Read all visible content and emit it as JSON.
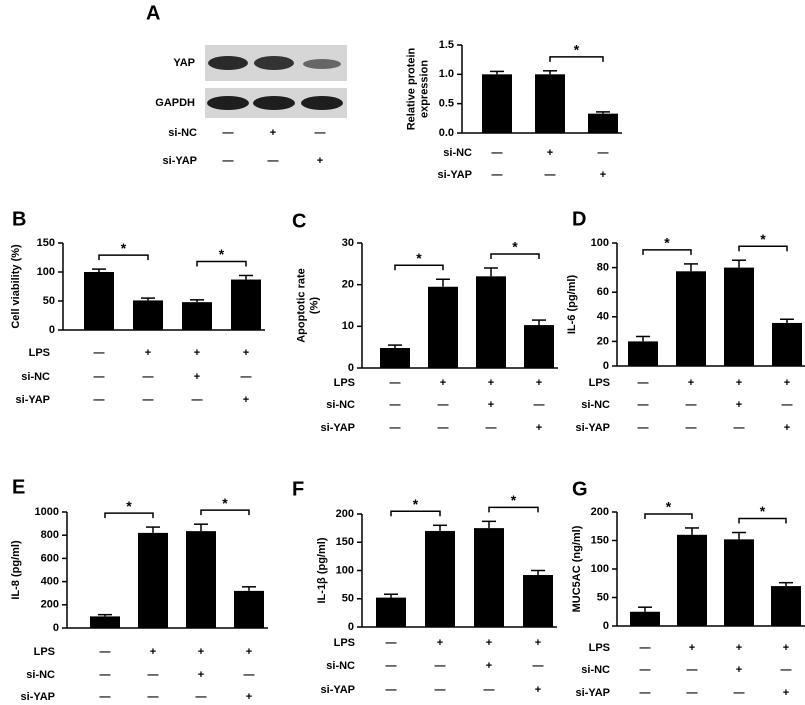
{
  "chart_data": [
    {
      "type": "bar",
      "panel": "A",
      "ylabel": [
        "Relative protein",
        "expression"
      ],
      "values": [
        1.0,
        1.0,
        0.33
      ],
      "errors": [
        0.05,
        0.06,
        0.03
      ],
      "color": "#000000",
      "ylim": [
        0,
        1.5
      ],
      "yticks": [
        {
          "value": 0,
          "label": "0.0"
        },
        {
          "value": 0.5,
          "label": "0.5"
        },
        {
          "value": 1,
          "label": "1.0"
        },
        {
          "value": 1.5,
          "label": "1.5"
        }
      ],
      "conditions": [
        {
          "label": "si-NC",
          "values": [
            "—",
            "+",
            "—"
          ]
        },
        {
          "label": "si-YAP",
          "values": [
            "—",
            "—",
            "+"
          ]
        }
      ],
      "comparisons": [
        {
          "label": "*"
        }
      ],
      "blot": {
        "bands": [
          "YAP",
          "GAPDH"
        ],
        "conditions": [
          {
            "label": "si-NC",
            "values": [
              "—",
              "+",
              "—"
            ]
          },
          {
            "label": "si-YAP",
            "values": [
              "—",
              "—",
              "+"
            ]
          }
        ]
      }
    },
    {
      "type": "bar",
      "panel": "B",
      "ylabel": [
        "Cell viability (%)"
      ],
      "values": [
        100,
        51,
        48,
        87
      ],
      "errors": [
        5,
        4,
        4,
        7
      ],
      "color": "#000000",
      "ylim": [
        0,
        150
      ],
      "yticks": [
        0,
        50,
        100,
        150
      ],
      "conditions": [
        {
          "label": "LPS",
          "values": [
            "—",
            "+",
            "+",
            "+"
          ]
        },
        {
          "label": "si-NC",
          "values": [
            "—",
            "—",
            "+",
            "—"
          ]
        },
        {
          "label": "si-YAP",
          "values": [
            "—",
            "—",
            "—",
            "+"
          ]
        }
      ],
      "comparisons": [
        {
          "label": "*"
        },
        {
          "label": "*"
        }
      ]
    },
    {
      "type": "bar",
      "panel": "C",
      "ylabel": [
        "Apoptotic rate",
        "(%)"
      ],
      "values": [
        4.8,
        19.5,
        22,
        10.3
      ],
      "errors": [
        0.7,
        1.8,
        2,
        1.2
      ],
      "color": "#000000",
      "ylim": [
        0,
        30
      ],
      "yticks": [
        0,
        10,
        20,
        30
      ],
      "conditions": [
        {
          "label": "LPS",
          "values": [
            "—",
            "+",
            "+",
            "+"
          ]
        },
        {
          "label": "si-NC",
          "values": [
            "—",
            "—",
            "+",
            "—"
          ]
        },
        {
          "label": "si-YAP",
          "values": [
            "—",
            "—",
            "—",
            "+"
          ]
        }
      ],
      "comparisons": [
        {
          "label": "*"
        },
        {
          "label": "*"
        }
      ]
    },
    {
      "type": "bar",
      "panel": "D",
      "ylabel": [
        "IL-6 (pg/ml)"
      ],
      "values": [
        20,
        77,
        80,
        35
      ],
      "errors": [
        4,
        6,
        6,
        3
      ],
      "color": "#000000",
      "ylim": [
        0,
        100
      ],
      "yticks": [
        0,
        20,
        40,
        60,
        80,
        100
      ],
      "conditions": [
        {
          "label": "LPS",
          "values": [
            "—",
            "+",
            "+",
            "+"
          ]
        },
        {
          "label": "si-NC",
          "values": [
            "—",
            "—",
            "+",
            "—"
          ]
        },
        {
          "label": "si-YAP",
          "values": [
            "—",
            "—",
            "—",
            "+"
          ]
        }
      ],
      "comparisons": [
        {
          "label": "*"
        },
        {
          "label": "*"
        }
      ]
    },
    {
      "type": "bar",
      "panel": "E",
      "ylabel": [
        "IL-8 (pg/ml)"
      ],
      "values": [
        100,
        820,
        835,
        320
      ],
      "errors": [
        15,
        50,
        60,
        35
      ],
      "color": "#000000",
      "ylim": [
        0,
        1000
      ],
      "yticks": [
        0,
        200,
        400,
        600,
        800,
        1000
      ],
      "conditions": [
        {
          "label": "LPS",
          "values": [
            "—",
            "+",
            "+",
            "+"
          ]
        },
        {
          "label": "si-NC",
          "values": [
            "—",
            "—",
            "+",
            "—"
          ]
        },
        {
          "label": "si-YAP",
          "values": [
            "—",
            "—",
            "—",
            "+"
          ]
        }
      ],
      "comparisons": [
        {
          "label": "*"
        },
        {
          "label": "*"
        }
      ]
    },
    {
      "type": "bar",
      "panel": "F",
      "ylabel": [
        "IL-1β (pg/ml)"
      ],
      "values": [
        52,
        170,
        175,
        92
      ],
      "errors": [
        6,
        10,
        12,
        8
      ],
      "color": "#000000",
      "ylim": [
        0,
        200
      ],
      "yticks": [
        0,
        50,
        100,
        150,
        200
      ],
      "conditions": [
        {
          "label": "LPS",
          "values": [
            "—",
            "+",
            "+",
            "+"
          ]
        },
        {
          "label": "si-NC",
          "values": [
            "—",
            "—",
            "+",
            "—"
          ]
        },
        {
          "label": "si-YAP",
          "values": [
            "—",
            "—",
            "—",
            "+"
          ]
        }
      ],
      "comparisons": [
        {
          "label": "*"
        },
        {
          "label": "*"
        }
      ]
    },
    {
      "type": "bar",
      "panel": "G",
      "ylabel": [
        "MUC5AC (ng/ml)"
      ],
      "values": [
        25,
        160,
        152,
        70
      ],
      "errors": [
        8,
        12,
        12,
        6
      ],
      "color": "#000000",
      "ylim": [
        0,
        200
      ],
      "yticks": [
        0,
        50,
        100,
        150,
        200
      ],
      "conditions": [
        {
          "label": "LPS",
          "values": [
            "—",
            "+",
            "+",
            "+"
          ]
        },
        {
          "label": "si-NC",
          "values": [
            "—",
            "—",
            "+",
            "—"
          ]
        },
        {
          "label": "si-YAP",
          "values": [
            "—",
            "—",
            "—",
            "+"
          ]
        }
      ],
      "comparisons": [
        {
          "label": "*"
        },
        {
          "label": "*"
        }
      ]
    }
  ]
}
